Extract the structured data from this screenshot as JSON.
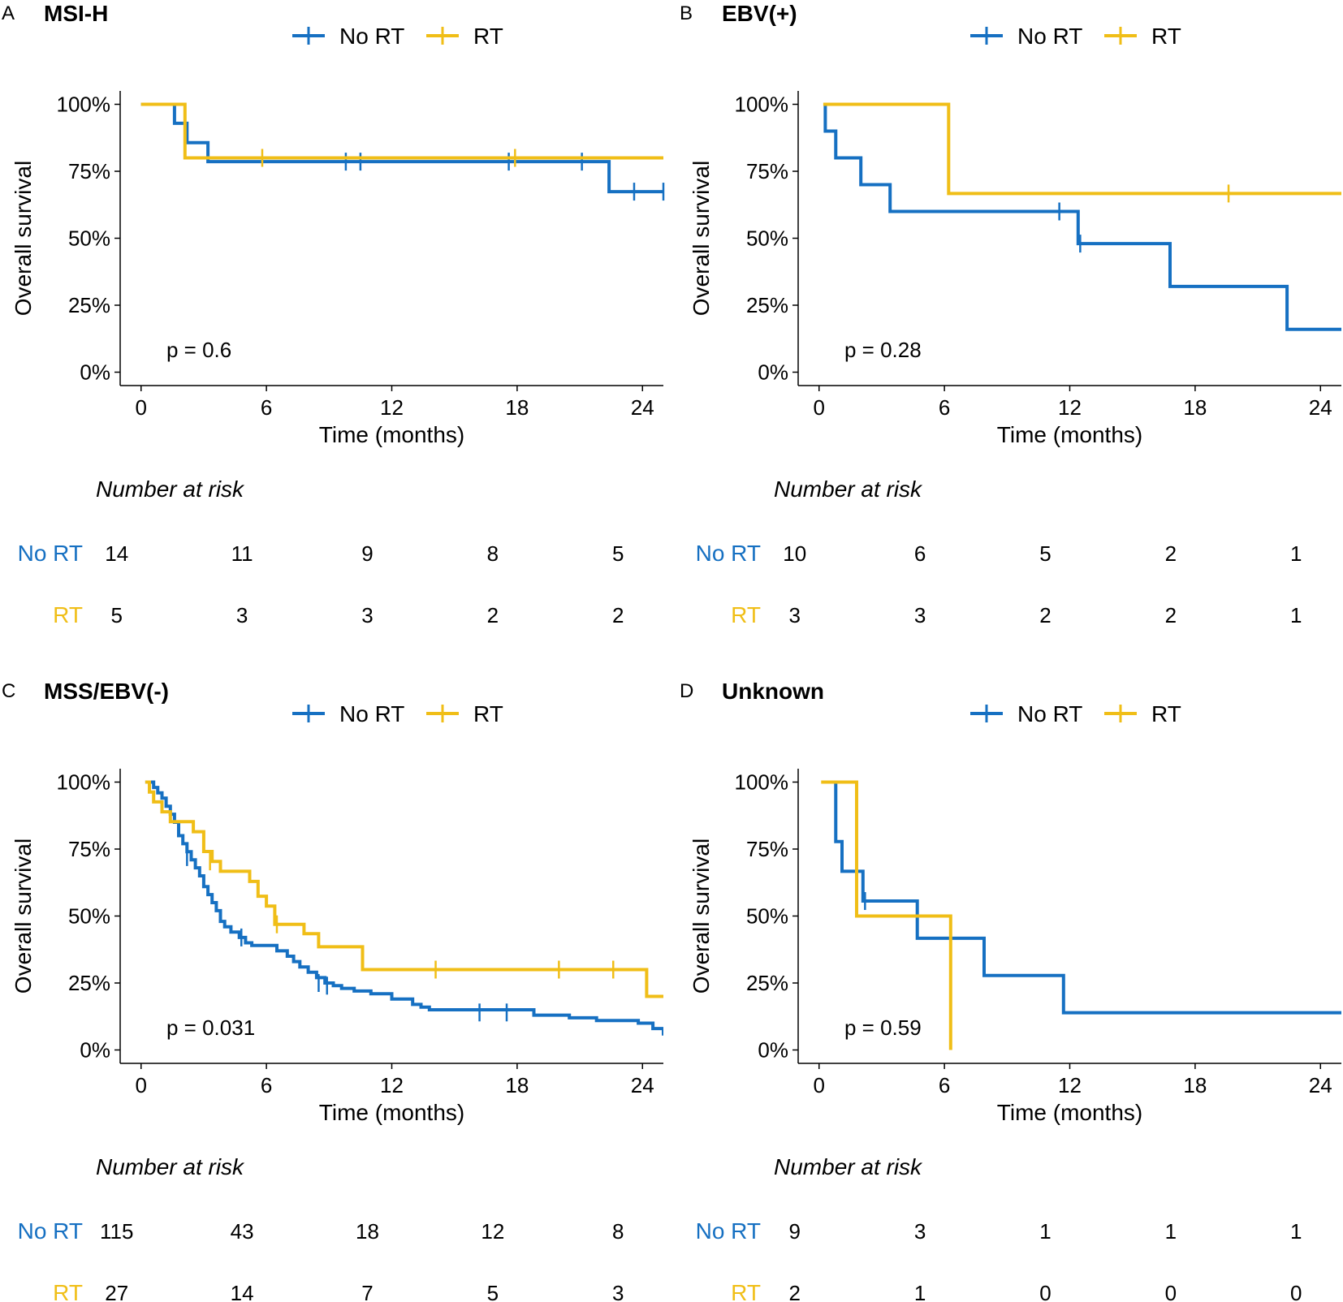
{
  "figure": {
    "colors": {
      "no_rt": "#1670C2",
      "rt": "#F0BE17",
      "axis": "#000000"
    }
  },
  "chart_data": [
    {
      "type": "line",
      "panel_label": "A",
      "title": "MSI-H",
      "legend": [
        "No RT",
        "RT"
      ],
      "legend_position": "top",
      "xlabel": "Time (months)",
      "ylabel": "Overall survival",
      "xlim": [
        -1,
        25
      ],
      "ylim": [
        -0.05,
        1.05
      ],
      "xticks": [
        0,
        6,
        12,
        18,
        24
      ],
      "yticks": [
        0,
        0.25,
        0.5,
        0.75,
        1
      ],
      "ytick_labels": [
        "0%",
        "25%",
        "50%",
        "75%",
        "100%"
      ],
      "grid": false,
      "p_value": "p = 0.6",
      "series": [
        {
          "name": "No RT",
          "color": "#1670C2",
          "x": [
            0,
            1.6,
            1.6,
            2.2,
            2.2,
            3.2,
            3.2,
            22.4,
            22.4,
            25.2
          ],
          "y": [
            1,
            1,
            0.929,
            0.929,
            0.857,
            0.857,
            0.786,
            0.786,
            0.674,
            0.674
          ],
          "censor_x": [
            9.8,
            10.5,
            17.6,
            21.1,
            23.6,
            25.0
          ],
          "censor_y": [
            0.786,
            0.786,
            0.786,
            0.786,
            0.674,
            0.674
          ]
        },
        {
          "name": "RT",
          "color": "#F0BE17",
          "x": [
            0,
            2.1,
            2.1,
            25.2
          ],
          "y": [
            1,
            1,
            0.8,
            0.8
          ],
          "censor_x": [
            5.8,
            17.9
          ],
          "censor_y": [
            0.8,
            0.8
          ]
        }
      ],
      "risk_table": {
        "title": "Number at risk",
        "times": [
          0,
          6,
          12,
          18,
          24
        ],
        "rows": [
          {
            "label": "No RT",
            "color": "#1670C2",
            "counts": [
              "14",
              "11",
              "9",
              "8",
              "5"
            ]
          },
          {
            "label": "RT",
            "color": "#F0BE17",
            "counts": [
              "5",
              "3",
              "3",
              "2",
              "2"
            ]
          }
        ]
      }
    },
    {
      "type": "line",
      "panel_label": "B",
      "title": "EBV(+)",
      "legend": [
        "No RT",
        "RT"
      ],
      "legend_position": "top",
      "xlabel": "Time (months)",
      "ylabel": "Overall survival",
      "xlim": [
        -1,
        25
      ],
      "ylim": [
        -0.05,
        1.05
      ],
      "xticks": [
        0,
        6,
        12,
        18,
        24
      ],
      "yticks": [
        0,
        0.25,
        0.5,
        0.75,
        1
      ],
      "ytick_labels": [
        "0%",
        "25%",
        "50%",
        "75%",
        "100%"
      ],
      "grid": false,
      "p_value": "p = 0.28",
      "series": [
        {
          "name": "No RT",
          "color": "#1670C2",
          "x": [
            0.3,
            0.3,
            0.8,
            0.8,
            2.0,
            2.0,
            3.4,
            3.4,
            12.4,
            12.4,
            16.8,
            16.8,
            22.4,
            22.4,
            25.2
          ],
          "y": [
            1,
            0.9,
            0.9,
            0.8,
            0.8,
            0.7,
            0.7,
            0.6,
            0.6,
            0.48,
            0.48,
            0.32,
            0.32,
            0.16,
            0.16
          ],
          "censor_x": [
            11.5,
            12.5
          ],
          "censor_y": [
            0.6,
            0.48
          ]
        },
        {
          "name": "RT",
          "color": "#F0BE17",
          "x": [
            0.2,
            6.2,
            6.2,
            25.2
          ],
          "y": [
            1,
            1,
            0.667,
            0.667
          ],
          "censor_x": [
            19.6
          ],
          "censor_y": [
            0.667
          ]
        }
      ],
      "risk_table": {
        "title": "Number at risk",
        "times": [
          0,
          6,
          12,
          18,
          24
        ],
        "rows": [
          {
            "label": "No RT",
            "color": "#1670C2",
            "counts": [
              "10",
              "6",
              "5",
              "2",
              "1"
            ]
          },
          {
            "label": "RT",
            "color": "#F0BE17",
            "counts": [
              "3",
              "3",
              "2",
              "2",
              "1"
            ]
          }
        ]
      }
    },
    {
      "type": "line",
      "panel_label": "C",
      "title": "MSS/EBV(-)",
      "legend": [
        "No RT",
        "RT"
      ],
      "legend_position": "top",
      "xlabel": "Time (months)",
      "ylabel": "Overall survival",
      "xlim": [
        -1,
        25
      ],
      "ylim": [
        -0.05,
        1.05
      ],
      "xticks": [
        0,
        6,
        12,
        18,
        24
      ],
      "yticks": [
        0,
        0.25,
        0.5,
        0.75,
        1
      ],
      "ytick_labels": [
        "0%",
        "25%",
        "50%",
        "75%",
        "100%"
      ],
      "grid": false,
      "p_value": "p = 0.031",
      "series": [
        {
          "name": "No RT",
          "color": "#1670C2",
          "x": [
            0.2,
            0.6,
            0.6,
            0.8,
            0.8,
            1.0,
            1.0,
            1.2,
            1.2,
            1.4,
            1.4,
            1.6,
            1.6,
            1.8,
            1.8,
            2.0,
            2.0,
            2.2,
            2.2,
            2.4,
            2.4,
            2.6,
            2.6,
            2.8,
            2.8,
            3.0,
            3.0,
            3.2,
            3.2,
            3.4,
            3.4,
            3.6,
            3.6,
            3.8,
            3.8,
            4.0,
            4.0,
            4.3,
            4.3,
            4.7,
            4.7,
            5.0,
            5.0,
            5.3,
            5.3,
            6.5,
            6.5,
            7.0,
            7.0,
            7.3,
            7.3,
            7.6,
            7.6,
            8.0,
            8.0,
            8.4,
            8.4,
            8.8,
            8.8,
            9.2,
            9.2,
            9.6,
            9.6,
            10.2,
            10.2,
            11.0,
            11.0,
            12.0,
            12.0,
            13.0,
            13.0,
            13.4,
            13.4,
            13.8,
            13.8,
            18.8,
            18.8,
            20.5,
            20.5,
            21.8,
            21.8,
            23.8,
            23.8,
            24.5,
            24.5,
            25.0,
            25.0,
            25.2
          ],
          "y": [
            1,
            1,
            0.98,
            0.98,
            0.96,
            0.96,
            0.94,
            0.94,
            0.91,
            0.91,
            0.88,
            0.88,
            0.85,
            0.85,
            0.8,
            0.8,
            0.77,
            0.77,
            0.74,
            0.74,
            0.71,
            0.71,
            0.68,
            0.68,
            0.65,
            0.65,
            0.61,
            0.61,
            0.58,
            0.58,
            0.55,
            0.55,
            0.52,
            0.52,
            0.48,
            0.48,
            0.46,
            0.46,
            0.44,
            0.44,
            0.42,
            0.42,
            0.4,
            0.4,
            0.39,
            0.39,
            0.37,
            0.37,
            0.35,
            0.35,
            0.33,
            0.33,
            0.31,
            0.31,
            0.29,
            0.29,
            0.27,
            0.27,
            0.25,
            0.25,
            0.24,
            0.24,
            0.23,
            0.23,
            0.22,
            0.22,
            0.21,
            0.21,
            0.19,
            0.19,
            0.17,
            0.17,
            0.16,
            0.16,
            0.15,
            0.15,
            0.13,
            0.13,
            0.12,
            0.12,
            0.11,
            0.11,
            0.1,
            0.1,
            0.08,
            0.08,
            0.06,
            0.06
          ],
          "censor_x": [
            2.2,
            4.8,
            8.5,
            8.9,
            16.2,
            17.5
          ],
          "censor_y": [
            0.72,
            0.42,
            0.25,
            0.24,
            0.14,
            0.14
          ]
        },
        {
          "name": "RT",
          "color": "#F0BE17",
          "x": [
            0.2,
            0.4,
            0.4,
            0.6,
            0.6,
            1.0,
            1.0,
            1.4,
            1.4,
            2.5,
            2.5,
            3.0,
            3.0,
            3.4,
            3.4,
            3.8,
            3.8,
            5.2,
            5.2,
            5.6,
            5.6,
            6.0,
            6.0,
            6.4,
            6.4,
            7.8,
            7.8,
            8.5,
            8.5,
            10.6,
            10.6,
            24.2,
            24.2,
            25.2
          ],
          "y": [
            1,
            1,
            0.963,
            0.963,
            0.926,
            0.926,
            0.889,
            0.889,
            0.852,
            0.852,
            0.815,
            0.815,
            0.741,
            0.741,
            0.704,
            0.704,
            0.667,
            0.667,
            0.629,
            0.629,
            0.574,
            0.574,
            0.537,
            0.537,
            0.469,
            0.469,
            0.434,
            0.434,
            0.385,
            0.385,
            0.3,
            0.3,
            0.2,
            0.2
          ],
          "censor_x": [
            3.3,
            6.5,
            14.1,
            20.0,
            22.6
          ],
          "censor_y": [
            0.704,
            0.469,
            0.3,
            0.3,
            0.3
          ]
        }
      ],
      "risk_table": {
        "title": "Number at risk",
        "times": [
          0,
          6,
          12,
          18,
          24
        ],
        "rows": [
          {
            "label": "No RT",
            "color": "#1670C2",
            "counts": [
              "115",
              "43",
              "18",
              "12",
              "8"
            ]
          },
          {
            "label": "RT",
            "color": "#F0BE17",
            "counts": [
              "27",
              "14",
              "7",
              "5",
              "3"
            ]
          }
        ]
      }
    },
    {
      "type": "line",
      "panel_label": "D",
      "title": "Unknown",
      "legend": [
        "No RT",
        "RT"
      ],
      "legend_position": "top",
      "xlabel": "Time (months)",
      "ylabel": "Overall survival",
      "xlim": [
        -1,
        25
      ],
      "ylim": [
        -0.05,
        1.05
      ],
      "xticks": [
        0,
        6,
        12,
        18,
        24
      ],
      "yticks": [
        0,
        0.25,
        0.5,
        0.75,
        1
      ],
      "ytick_labels": [
        "0%",
        "25%",
        "50%",
        "75%",
        "100%"
      ],
      "grid": false,
      "p_value": "p = 0.59",
      "series": [
        {
          "name": "No RT",
          "color": "#1670C2",
          "x": [
            0.8,
            0.8,
            1.1,
            1.1,
            2.1,
            2.1,
            4.7,
            4.7,
            7.9,
            7.9,
            11.7,
            11.7,
            25.2
          ],
          "y": [
            1,
            0.778,
            0.778,
            0.667,
            0.667,
            0.556,
            0.556,
            0.417,
            0.417,
            0.278,
            0.278,
            0.139,
            0.139
          ],
          "censor_x": [
            2.2
          ],
          "censor_y": [
            0.556
          ]
        },
        {
          "name": "RT",
          "color": "#F0BE17",
          "x": [
            0.1,
            1.8,
            1.8,
            6.3,
            6.3
          ],
          "y": [
            1,
            1,
            0.5,
            0.5,
            0.0
          ],
          "censor_x": [],
          "censor_y": []
        }
      ],
      "risk_table": {
        "title": "Number at risk",
        "times": [
          0,
          6,
          12,
          18,
          24
        ],
        "rows": [
          {
            "label": "No RT",
            "color": "#1670C2",
            "counts": [
              "9",
              "3",
              "1",
              "1",
              "1"
            ]
          },
          {
            "label": "RT",
            "color": "#F0BE17",
            "counts": [
              "2",
              "1",
              "0",
              "0",
              "0"
            ]
          }
        ]
      }
    }
  ]
}
